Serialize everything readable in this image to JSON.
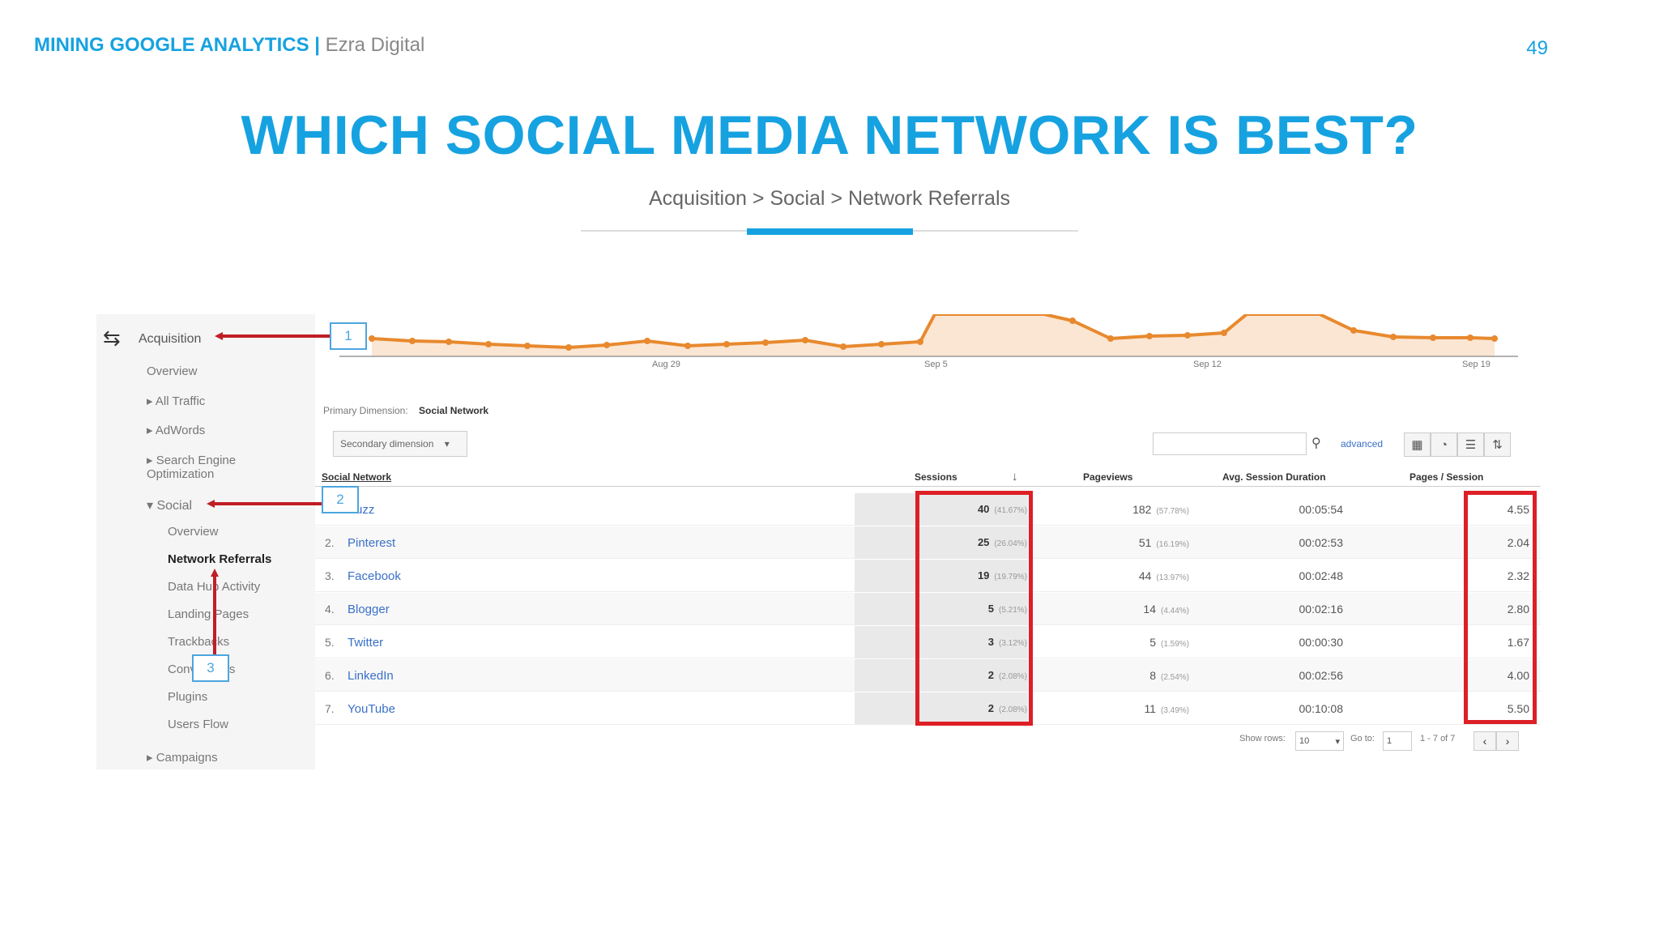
{
  "header": {
    "brand": "MINING GOOGLE ANALYTICS",
    "separator": "|",
    "company": "Ezra Digital",
    "page_number": "49"
  },
  "slide": {
    "title": "WHICH SOCIAL MEDIA NETWORK IS BEST?",
    "subtitle": "Acquisition > Social > Network Referrals"
  },
  "sidebar": {
    "items": [
      "Acquisition",
      "Overview",
      "All Traffic",
      "AdWords",
      "Search Engine Optimization",
      "Social",
      "Overview",
      "Network Referrals",
      "Data Hub Activity",
      "Landing Pages",
      "Trackbacks",
      "Conversions",
      "Plugins",
      "Users Flow",
      "Campaigns"
    ]
  },
  "chart": {
    "x_ticks": [
      "Aug 29",
      "Sep 5",
      "Sep 12",
      "Sep 19"
    ],
    "line_color": "#e8892e"
  },
  "controls": {
    "primary_dimension_label": "Primary Dimension:",
    "primary_dimension_value": "Social Network",
    "secondary_dimension": "Secondary dimension",
    "advanced": "advanced",
    "show_rows_label": "Show rows:",
    "show_rows_value": "10",
    "goto_label": "Go to:",
    "goto_value": "1",
    "range": "1 - 7 of 7"
  },
  "table": {
    "headers": [
      "Social Network",
      "Sessions",
      "Pageviews",
      "Avg. Session Duration",
      "Pages / Session"
    ],
    "rows": [
      {
        "idx": "1.",
        "name": "Buzz",
        "sessions": "40",
        "sessions_pct": "(41.67%)",
        "pageviews": "182",
        "pageviews_pct": "(57.78%)",
        "duration": "00:05:54",
        "pps": "4.55"
      },
      {
        "idx": "2.",
        "name": "Pinterest",
        "sessions": "25",
        "sessions_pct": "(26.04%)",
        "pageviews": "51",
        "pageviews_pct": "(16.19%)",
        "duration": "00:02:53",
        "pps": "2.04"
      },
      {
        "idx": "3.",
        "name": "Facebook",
        "sessions": "19",
        "sessions_pct": "(19.79%)",
        "pageviews": "44",
        "pageviews_pct": "(13.97%)",
        "duration": "00:02:48",
        "pps": "2.32"
      },
      {
        "idx": "4.",
        "name": "Blogger",
        "sessions": "5",
        "sessions_pct": "(5.21%)",
        "pageviews": "14",
        "pageviews_pct": "(4.44%)",
        "duration": "00:02:16",
        "pps": "2.80"
      },
      {
        "idx": "5.",
        "name": "Twitter",
        "sessions": "3",
        "sessions_pct": "(3.12%)",
        "pageviews": "5",
        "pageviews_pct": "(1.59%)",
        "duration": "00:00:30",
        "pps": "1.67"
      },
      {
        "idx": "6.",
        "name": "LinkedIn",
        "sessions": "2",
        "sessions_pct": "(2.08%)",
        "pageviews": "8",
        "pageviews_pct": "(2.54%)",
        "duration": "00:02:56",
        "pps": "4.00"
      },
      {
        "idx": "7.",
        "name": "YouTube",
        "sessions": "2",
        "sessions_pct": "(2.08%)",
        "pageviews": "11",
        "pageviews_pct": "(3.49%)",
        "duration": "00:10:08",
        "pps": "5.50"
      }
    ]
  },
  "callouts": [
    "1",
    "2",
    "3"
  ],
  "colors": {
    "accent": "#16a2e0",
    "highlight": "#dd1f26",
    "callout": "#4ca6df",
    "link": "#3a70c8"
  }
}
